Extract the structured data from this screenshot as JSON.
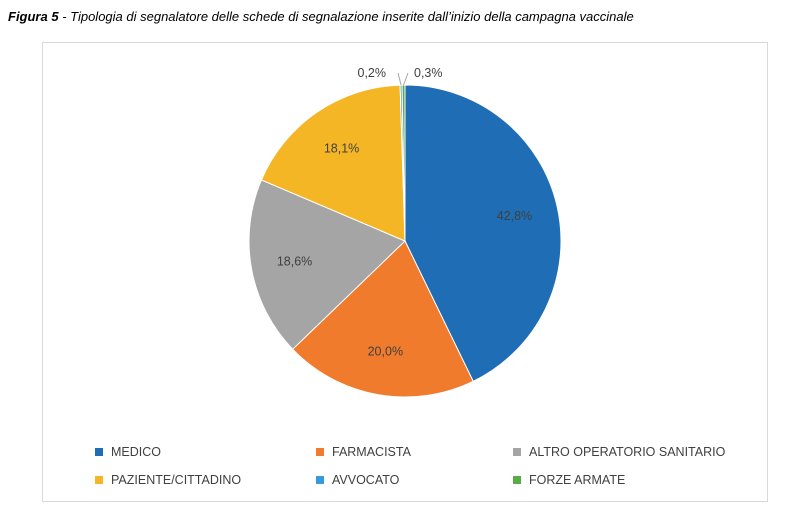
{
  "caption": {
    "lead": "Figura 5",
    "text": " - Tipologia di segnalatore delle schede di segnalazione inserite dall’inizio della campagna vaccinale"
  },
  "chart_data": {
    "type": "pie",
    "title": "",
    "categories": [
      "MEDICO",
      "FARMACISTA",
      "ALTRO OPERATORIO SANITARIO",
      "PAZIENTE/CITTADINO",
      "AVVOCATO",
      "FORZE ARMATE"
    ],
    "values": [
      42.8,
      20.0,
      18.6,
      18.1,
      0.2,
      0.3
    ],
    "labels": [
      "42,8%",
      "20,0%",
      "18,6%",
      "18,1%",
      "0,2%",
      "0,3%"
    ],
    "colors": [
      "#1f6db5",
      "#f07b2c",
      "#a5a5a5",
      "#f5b625",
      "#3a9ad9",
      "#5aab47"
    ],
    "start_angle": "12 o'clock, clockwise",
    "legend_position": "bottom"
  }
}
